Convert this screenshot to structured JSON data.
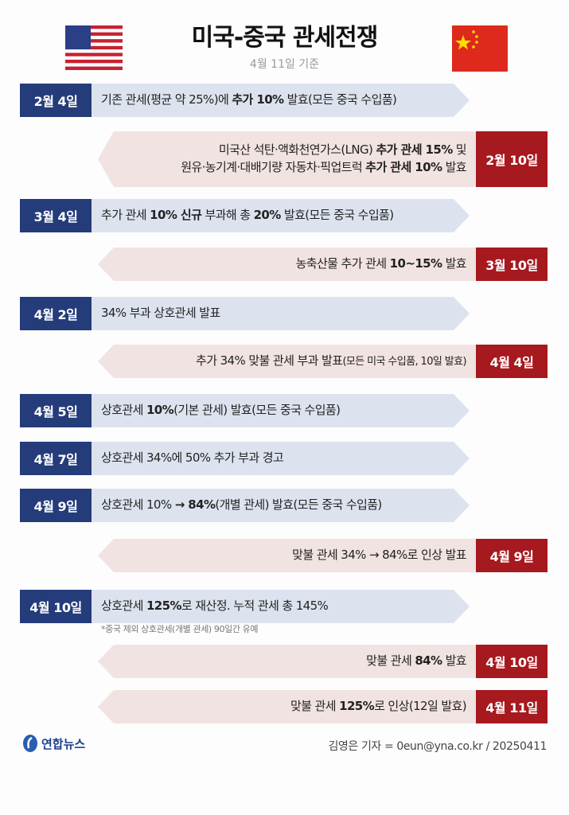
{
  "header": {
    "title": "미국-중국 관세전쟁",
    "subtitle": "4월 11일 기준"
  },
  "colors": {
    "us_date": "#253c7b",
    "us_arrow": "#dde3ee",
    "china_date": "#a6191e",
    "china_arrow": "#f1e3e1"
  },
  "icons": {
    "left": "us-flag-icon",
    "right": "china-flag-icon"
  },
  "timeline": [
    {
      "side": "us",
      "date": "2월 4일",
      "segments": [
        {
          "t": "기존 관세(평균 약 25%)에 "
        },
        {
          "t": "추가 10%",
          "b": true
        },
        {
          "t": " 발효(모든 중국 수입품)"
        }
      ]
    },
    {
      "side": "china",
      "date": "2월 10일",
      "segments": [
        {
          "t": "미국산 석탄·액화천연가스(LNG) "
        },
        {
          "t": "추가 관세 15%",
          "b": true
        },
        {
          "t": " 및"
        },
        {
          "br": true
        },
        {
          "t": "원유·농기계·대배기량 자동차·픽업트럭 "
        },
        {
          "t": "추가 관세 10%",
          "b": true
        },
        {
          "t": " 발효"
        }
      ]
    },
    {
      "side": "us",
      "date": "3월 4일",
      "segments": [
        {
          "t": "추가 관세 "
        },
        {
          "t": "10% 신규",
          "b": true
        },
        {
          "t": " 부과해 총 "
        },
        {
          "t": "20%",
          "b": true
        },
        {
          "t": " 발효(모든 중국 수입품)"
        }
      ]
    },
    {
      "side": "china",
      "date": "3월 10일",
      "segments": [
        {
          "t": "농축산물 추가 관세 "
        },
        {
          "t": "10~15%",
          "b": true
        },
        {
          "t": " 발효"
        }
      ]
    },
    {
      "side": "us",
      "date": "4월 2일",
      "segments": [
        {
          "t": "34% 부과 상호관세 발표"
        }
      ]
    },
    {
      "side": "china",
      "date": "4월 4일",
      "segments": [
        {
          "t": "추가 34% 맞불 관세 부과 발표"
        },
        {
          "t": "(모든 미국 수입품, 10일 발효)",
          "s": true
        }
      ]
    },
    {
      "side": "us",
      "date": "4월 5일",
      "segments": [
        {
          "t": "상호관세 "
        },
        {
          "t": "10%",
          "b": true
        },
        {
          "t": "(기본 관세) 발효(모든 중국 수입품)"
        }
      ]
    },
    {
      "side": "us",
      "date": "4월 7일",
      "segments": [
        {
          "t": "상호관세 34%에 50% 추가 부과 경고"
        }
      ]
    },
    {
      "side": "us",
      "date": "4월 9일",
      "segments": [
        {
          "t": "상호관세 10% "
        },
        {
          "t": "→ 84%",
          "b": true
        },
        {
          "t": "(개별 관세) 발효(모든 중국 수입품)"
        }
      ]
    },
    {
      "side": "china",
      "date": "4월 9일",
      "segments": [
        {
          "t": "맞불 관세 34% → 84%로 인상 발표"
        }
      ]
    },
    {
      "side": "us",
      "date": "4월 10일",
      "segments": [
        {
          "t": "상호관세 "
        },
        {
          "t": "125%",
          "b": true
        },
        {
          "t": "로 재산정. 누적 관세 총 145%"
        }
      ]
    },
    {
      "side": "china",
      "date": "4월 10일",
      "segments": [
        {
          "t": "맞불 관세 "
        },
        {
          "t": "84%",
          "b": true
        },
        {
          "t": " 발효"
        }
      ]
    },
    {
      "side": "china",
      "date": "4월 11일",
      "segments": [
        {
          "t": "맞불 관세 "
        },
        {
          "t": "125%",
          "b": true
        },
        {
          "t": "로 인상(12일 발효)"
        }
      ]
    }
  ],
  "note": "*중국 제외 상호관세(개별 관세) 90일간 유예",
  "footer": {
    "logo": "연합뉴스",
    "credit": "김영은 기자 = 0eun@yna.co.kr / 20250411"
  }
}
